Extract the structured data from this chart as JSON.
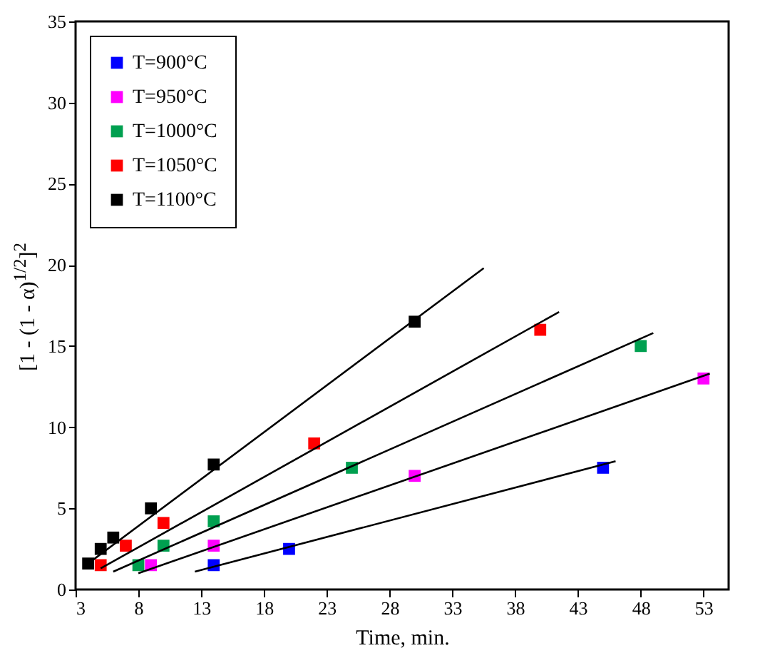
{
  "chart_data": {
    "type": "scatter",
    "xlabel": "Time, min.",
    "ylabel": "[1 - (1 - α)$^{1/2}$]$^{2}$",
    "xlim": [
      3,
      55
    ],
    "xticks": [
      3,
      8,
      13,
      18,
      23,
      28,
      33,
      38,
      43,
      48,
      53
    ],
    "ylim": [
      0,
      35
    ],
    "yticks": [
      0,
      5,
      10,
      15,
      20,
      25,
      30,
      35
    ],
    "marker": "square",
    "legend": "top left",
    "grid": false,
    "series": [
      {
        "name": "T=900°C",
        "color": "#0000ff",
        "x": [
          14,
          20,
          45
        ],
        "values": [
          1.5,
          2.5,
          7.5
        ]
      },
      {
        "name": "T=950°C",
        "color": "#ff00ff",
        "x": [
          9,
          14,
          30,
          53
        ],
        "values": [
          1.5,
          2.7,
          7,
          13
        ]
      },
      {
        "name": "T=1000°C",
        "color": "#00a050",
        "x": [
          8,
          10,
          14,
          25,
          48
        ],
        "values": [
          1.5,
          2.7,
          4.2,
          7.5,
          15
        ]
      },
      {
        "name": "T=1050°C",
        "color": "#ff0000",
        "x": [
          5,
          7,
          10,
          22,
          40
        ],
        "values": [
          1.5,
          2.7,
          4.1,
          9,
          16
        ]
      },
      {
        "name": "T=1100°C",
        "color": "#000000",
        "x": [
          4,
          5,
          6,
          9,
          14,
          30
        ],
        "values": [
          1.6,
          2.5,
          3.2,
          5,
          7.7,
          16.5
        ]
      },
      {
        "type": "line",
        "marker": "none",
        "color": "#000000",
        "x": [
          12.5,
          46
        ],
        "values": [
          1.1,
          7.9
        ]
      },
      {
        "type": "line",
        "marker": "none",
        "color": "#000000",
        "x": [
          8,
          53.5
        ],
        "values": [
          1.0,
          13.3
        ]
      },
      {
        "type": "line",
        "marker": "none",
        "color": "#000000",
        "x": [
          6,
          49
        ],
        "values": [
          1.1,
          15.8
        ]
      },
      {
        "type": "line",
        "marker": "none",
        "color": "#000000",
        "x": [
          5,
          41.5
        ],
        "values": [
          1.3,
          17.1
        ]
      },
      {
        "type": "line",
        "marker": "none",
        "color": "#000000",
        "x": [
          4,
          35.5
        ],
        "values": [
          1.6,
          19.8
        ]
      }
    ]
  }
}
